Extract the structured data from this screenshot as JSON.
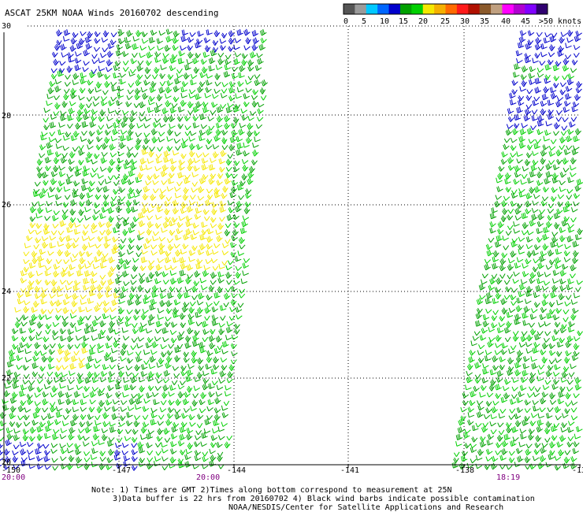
{
  "title": "ASCAT 25KM NOAA Winds 20160702 descending",
  "legend": {
    "colors": [
      "#555555",
      "#9b9b9b",
      "#00c8ff",
      "#0066ff",
      "#0000cc",
      "#00a000",
      "#00d000",
      "#f5e800",
      "#f5b000",
      "#ff6a00",
      "#ff1a1a",
      "#b01000",
      "#8b5a2b",
      "#c0a080",
      "#ff00ff",
      "#b000d0",
      "#8000ff",
      "#300070"
    ],
    "labels": [
      "0",
      "5",
      "10",
      "15",
      "20",
      "25",
      "30",
      "35",
      "40",
      "45",
      ">50 knots"
    ]
  },
  "axes": {
    "lat_labels": [
      "30",
      "28",
      "26",
      "24",
      "22",
      "20"
    ],
    "lon_labels": [
      "-150",
      "-147",
      "-144",
      "-141",
      "-138",
      "-13"
    ],
    "times": [
      "20:00",
      "20:00",
      "18:19"
    ]
  },
  "notes": [
    "Note: 1) Times are GMT 2)Times along bottom correspond to measurement at 25N",
    "3)Data buffer is 22 hrs from 20160702 4) Black wind barbs indicate possible contamination",
    "NOAA/NESDIS/Center for Satellite Applications and Research"
  ]
}
